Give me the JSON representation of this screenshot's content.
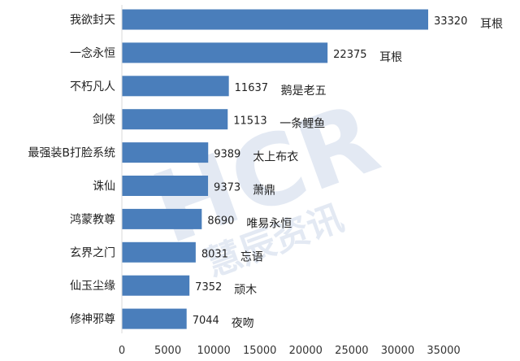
{
  "chart_data": {
    "type": "bar",
    "orientation": "horizontal",
    "title": "",
    "xlabel": "",
    "ylabel": "",
    "xlim": [
      0,
      35000
    ],
    "xticks": [
      0,
      5000,
      10000,
      15000,
      20000,
      25000,
      30000,
      35000
    ],
    "grid": false,
    "categories": [
      "我欲封天",
      "一念永恒",
      "不朽凡人",
      "剑侠",
      "最强装B打脸系统",
      "诛仙",
      "鸿蒙教尊",
      "玄界之门",
      "仙玉尘缘",
      "修神邪尊"
    ],
    "values": [
      33320,
      22375,
      11637,
      11513,
      9389,
      9373,
      8690,
      8031,
      7352,
      7044
    ],
    "authors": [
      "耳根",
      "耳根",
      "鹅是老五",
      "一条鲤鱼",
      "太上布衣",
      "萧鼎",
      "唯易永恒",
      "忘语",
      "顽木",
      "夜吻"
    ],
    "bar_color": "#4a7ebb"
  },
  "watermark": {
    "main": "HCR",
    "sub": "慧辰资讯"
  }
}
